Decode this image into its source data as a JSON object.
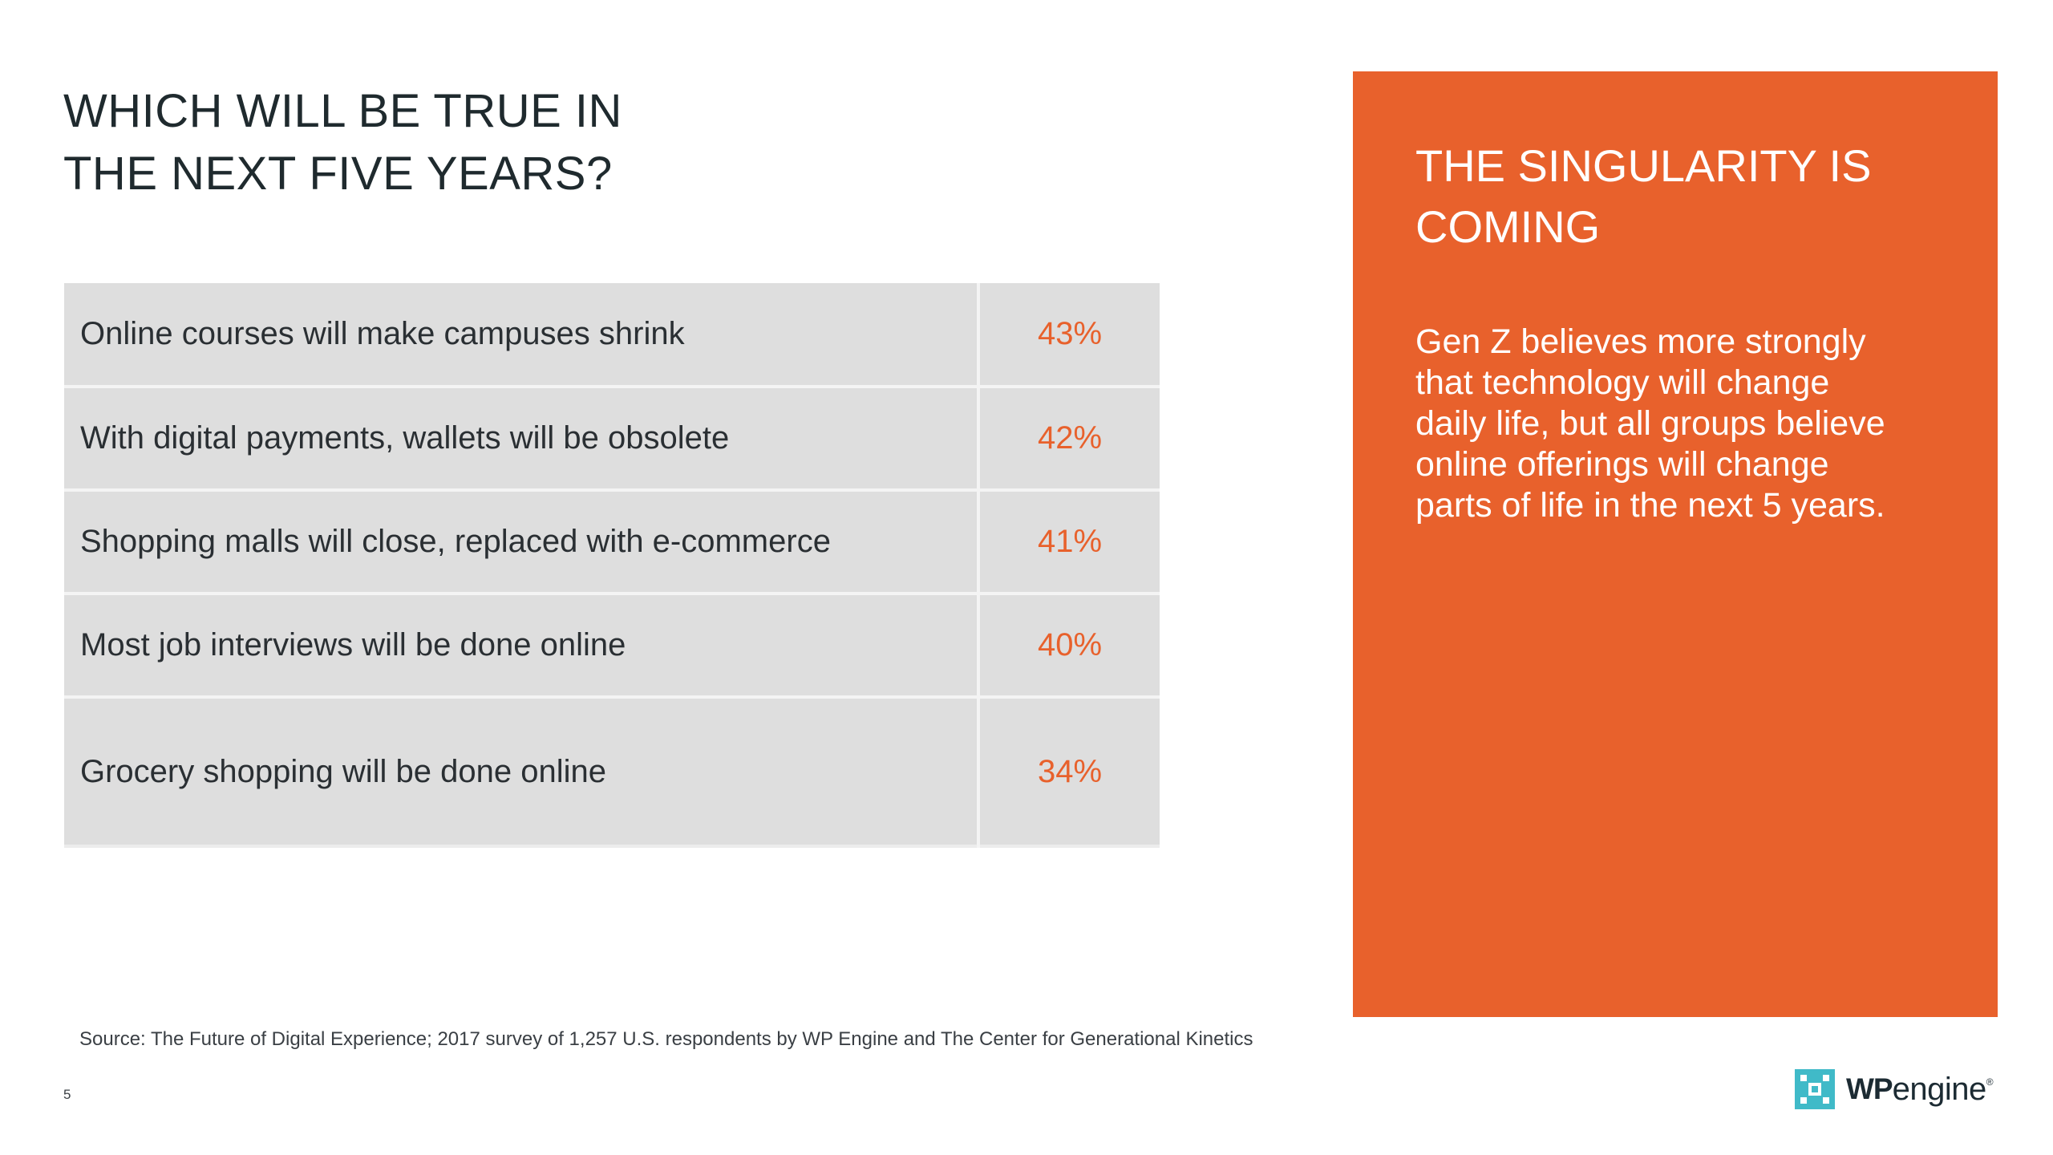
{
  "title": {
    "line1": "Which will be true in",
    "line2": "the next five years?"
  },
  "stats": [
    {
      "statement": "Online courses will make campuses shrink",
      "percent": "43%"
    },
    {
      "statement": "With digital payments, wallets will be obsolete",
      "percent": "42%"
    },
    {
      "statement": "Shopping malls will close, replaced with e-commerce",
      "percent": "41%"
    },
    {
      "statement": "Most job interviews will be done online",
      "percent": "40%"
    },
    {
      "statement": "Grocery shopping will be done online",
      "percent": "34%"
    }
  ],
  "callout": {
    "heading_line1": "The singularity is",
    "heading_line2": "coming",
    "body_lines": [
      "Gen Z believes more strongly",
      "that technology will change",
      "daily life, but all groups believe",
      "online offerings will change",
      "parts of life in the next 5 years."
    ]
  },
  "source": "Source: The Future of Digital Experience; 2017 survey of 1,257 U.S. respondents by WP Engine and The Center for Generational Kinetics",
  "page_number": "5",
  "logo": {
    "wp": "WP",
    "engine": "engine",
    "reg": "®"
  },
  "colors": {
    "accent": "#e8612c",
    "table_row": "#dedede",
    "logo_mark": "#40bac8",
    "text_dark": "#1f2a2e"
  }
}
